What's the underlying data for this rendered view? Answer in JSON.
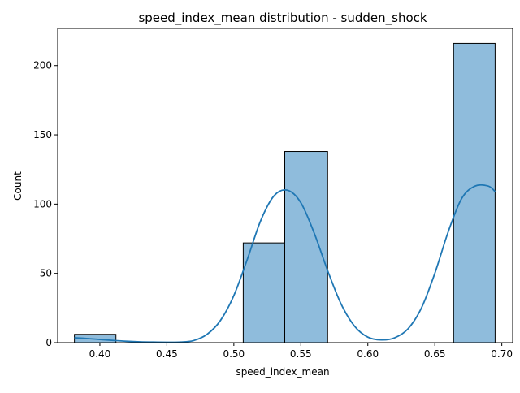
{
  "chart_data": {
    "type": "bar",
    "title": "speed_index_mean distribution - sudden_shock",
    "xlabel": "speed_index_mean",
    "ylabel": "Count",
    "xlim": [
      0.3685,
      0.7081
    ],
    "ylim": [
      0,
      226.8
    ],
    "x_ticks": [
      0.4,
      0.45,
      0.5,
      0.55,
      0.6,
      0.65,
      0.7
    ],
    "x_tick_labels": [
      "0.40",
      "0.45",
      "0.50",
      "0.55",
      "0.60",
      "0.65",
      "0.70"
    ],
    "y_ticks": [
      0,
      50,
      100,
      150,
      200
    ],
    "y_tick_labels": [
      "0",
      "50",
      "100",
      "150",
      "200"
    ],
    "bars": [
      {
        "x0": 0.381,
        "x1": 0.412,
        "count": 6
      },
      {
        "x0": 0.507,
        "x1": 0.538,
        "count": 72
      },
      {
        "x0": 0.538,
        "x1": 0.57,
        "count": 138
      },
      {
        "x0": 0.664,
        "x1": 0.695,
        "count": 216
      }
    ],
    "kde": {
      "x": [
        0.381,
        0.39,
        0.4,
        0.41,
        0.42,
        0.43,
        0.44,
        0.45,
        0.46,
        0.47,
        0.48,
        0.49,
        0.5,
        0.51,
        0.52,
        0.53,
        0.54,
        0.55,
        0.56,
        0.57,
        0.58,
        0.59,
        0.6,
        0.61,
        0.62,
        0.63,
        0.64,
        0.65,
        0.66,
        0.67,
        0.68,
        0.69,
        0.695
      ],
      "y": [
        3.5,
        3.0,
        2.3,
        1.6,
        1.0,
        0.6,
        0.4,
        0.3,
        0.4,
        1.5,
        6,
        16,
        34,
        60,
        88,
        106,
        110,
        101,
        79,
        52,
        28,
        12,
        4,
        2,
        3.5,
        10,
        25,
        50,
        80,
        104,
        113,
        113,
        109
      ]
    },
    "colors": {
      "bar_fill": "#8fbcdc",
      "bar_edge": "#000000",
      "kde_line": "#1f77b4",
      "axes": "#000000"
    },
    "grid": false,
    "legend": "none"
  }
}
